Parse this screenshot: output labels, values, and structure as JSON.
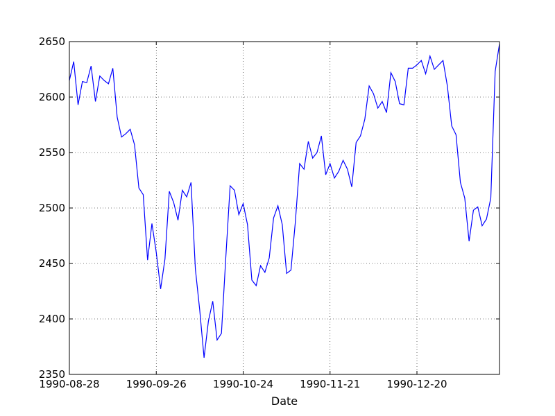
{
  "chart_data": {
    "type": "line",
    "title": "",
    "xlabel": "Date",
    "ylabel": "",
    "ylim": [
      2350,
      2650
    ],
    "yticks": [
      2350,
      2400,
      2450,
      2500,
      2550,
      2600,
      2650
    ],
    "grid": true,
    "grid_style": "dotted",
    "xticks": [
      {
        "index": 0,
        "label": "1990-08-28"
      },
      {
        "index": 20,
        "label": "1990-09-26"
      },
      {
        "index": 40,
        "label": "1990-10-24"
      },
      {
        "index": 60,
        "label": "1990-11-21"
      },
      {
        "index": 80,
        "label": "1990-12-20"
      }
    ],
    "series": [
      {
        "color": "#0000ff",
        "values": [
          2615,
          2632,
          2593,
          2614,
          2613,
          2628,
          2596,
          2619,
          2615,
          2612,
          2626,
          2582,
          2564,
          2567,
          2571,
          2557,
          2518,
          2512,
          2453,
          2486,
          2460,
          2427,
          2454,
          2515,
          2505,
          2489,
          2516,
          2510,
          2523,
          2445,
          2408,
          2365,
          2398,
          2416,
          2381,
          2387,
          2455,
          2520,
          2516,
          2494,
          2504,
          2485,
          2435,
          2430,
          2448,
          2442,
          2455,
          2491,
          2502,
          2485,
          2441,
          2444,
          2487,
          2540,
          2535,
          2560,
          2545,
          2550,
          2565,
          2530,
          2540,
          2527,
          2533,
          2543,
          2535,
          2519,
          2559,
          2565,
          2580,
          2610,
          2603,
          2590,
          2596,
          2586,
          2622,
          2614,
          2594,
          2593,
          2626,
          2626,
          2629,
          2633,
          2621,
          2637,
          2625,
          2629,
          2633,
          2610,
          2574,
          2566,
          2523,
          2509,
          2470,
          2498,
          2501,
          2484,
          2490,
          2509,
          2623,
          2648
        ]
      }
    ]
  }
}
